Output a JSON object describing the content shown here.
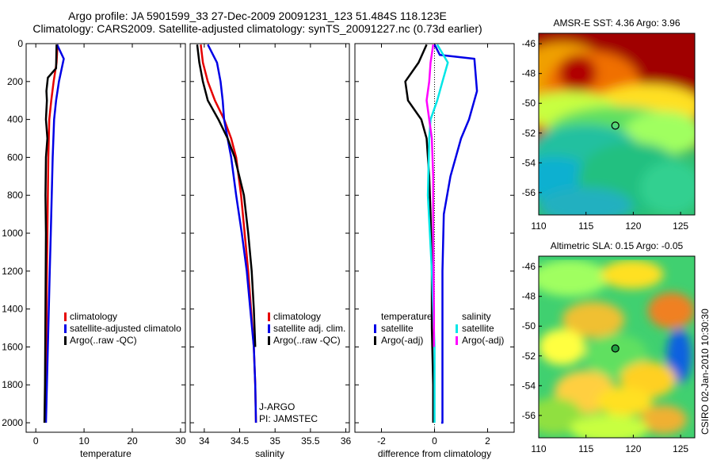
{
  "title_line1": "Argo profile: JA 5901599_33 27-Dec-2009 20091231_123 51.484S 118.123E",
  "title_line2": "Climatology: CARS2009. Satellite-adjusted climatology: synTS_20091227.nc (0.73d earlier)",
  "side_label": "CSIRO 02-Jan-2010 10:30:30",
  "colors": {
    "climatology": "#e60000",
    "satellite": "#0000e6",
    "argo": "#000000",
    "sal_satellite": "#00e6e6",
    "sal_argo": "#ff00ff"
  },
  "chart_data": [
    {
      "id": "temperature",
      "type": "line",
      "xlabel": "temperature",
      "ylabel": "",
      "xlim": [
        -2,
        31
      ],
      "ylim": [
        2050,
        0
      ],
      "xticks": [
        0,
        10,
        20,
        30
      ],
      "xtick_labels": [
        "0",
        "10",
        "20",
        "30"
      ],
      "yticks": [
        0,
        200,
        400,
        600,
        800,
        1000,
        1200,
        1400,
        1600,
        1800,
        2000
      ],
      "ytick_labels": [
        "0",
        "200",
        "400",
        "600",
        "800",
        "1000",
        "1200",
        "1400",
        "1600",
        "1800",
        "2000"
      ],
      "legend": [
        "climatology",
        "satellite-adjusted climatolo",
        "Argo(..raw -QC)"
      ],
      "series": [
        {
          "name": "climatology",
          "color": "#e60000",
          "x": [
            4.5,
            4.3,
            3.7,
            3.2,
            2.8,
            2.6,
            2.5,
            2.4,
            2.3,
            2.2,
            2.1,
            2.0
          ],
          "y": [
            5,
            100,
            200,
            300,
            400,
            600,
            800,
            1000,
            1200,
            1500,
            1800,
            2000
          ]
        },
        {
          "name": "satellite-adjusted climatology",
          "color": "#0000e6",
          "x": [
            4.4,
            5.8,
            4.8,
            4.2,
            3.8,
            3.5,
            3.3,
            3.1,
            2.9,
            2.6,
            2.3,
            2.1
          ],
          "y": [
            5,
            80,
            200,
            300,
            400,
            600,
            800,
            1000,
            1200,
            1500,
            1800,
            2000
          ]
        },
        {
          "name": "Argo(..raw -QC)",
          "color": "#000000",
          "x": [
            4.3,
            4.2,
            2.5,
            2.2,
            2.3,
            2.1,
            2.4,
            2.1,
            2.0,
            2.1,
            2.0,
            1.9,
            1.8
          ],
          "y": [
            5,
            130,
            180,
            250,
            300,
            400,
            500,
            600,
            800,
            1000,
            1400,
            1800,
            2000
          ]
        }
      ]
    },
    {
      "id": "salinity",
      "type": "line",
      "xlabel": "salinity",
      "ylabel": "",
      "xlim": [
        33.8,
        36.05
      ],
      "ylim": [
        2050,
        0
      ],
      "xticks": [
        34,
        34.5,
        35,
        35.5,
        36
      ],
      "xtick_labels": [
        "34",
        "34.5",
        "35",
        "35.5",
        "36"
      ],
      "yticks": [
        0,
        200,
        400,
        600,
        800,
        1000,
        1200,
        1400,
        1600,
        1800,
        2000
      ],
      "legend": [
        "climatology",
        "satellite adj. clim.",
        "Argo(..raw -QC)"
      ],
      "annotation": [
        "J-ARGO",
        "PI: JAMSTEC"
      ],
      "series": [
        {
          "name": "climatology",
          "color": "#e60000",
          "x": [
            33.95,
            33.98,
            34.05,
            34.15,
            34.28,
            34.38,
            34.45,
            34.52,
            34.57,
            34.62,
            34.66,
            34.7,
            34.72,
            34.73
          ],
          "y": [
            5,
            100,
            200,
            300,
            400,
            500,
            600,
            800,
            1000,
            1200,
            1400,
            1600,
            1800,
            2000
          ]
        },
        {
          "name": "satellite adj. clim.",
          "color": "#0000e6",
          "x": [
            34.05,
            34.18,
            34.23,
            34.26,
            34.28,
            34.33,
            34.38,
            34.45,
            34.53,
            34.6,
            34.65,
            34.7,
            34.72,
            34.73
          ],
          "y": [
            5,
            100,
            200,
            300,
            400,
            500,
            600,
            800,
            1000,
            1200,
            1400,
            1600,
            1800,
            2000
          ]
        },
        {
          "name": "Argo(..raw -QC)",
          "color": "#000000",
          "x": [
            33.9,
            33.93,
            33.98,
            34.05,
            34.2,
            34.33,
            34.43,
            34.56,
            34.62,
            34.67,
            34.7,
            34.72
          ],
          "y": [
            5,
            100,
            200,
            300,
            400,
            500,
            600,
            800,
            1000,
            1200,
            1400,
            1600
          ]
        }
      ]
    },
    {
      "id": "difference",
      "type": "line",
      "xlabel": "difference from climatology",
      "ylabel": "",
      "xlim": [
        -3,
        3
      ],
      "ylim": [
        2050,
        0
      ],
      "xticks": [
        -2,
        0,
        2
      ],
      "xtick_labels": [
        "-2",
        "0",
        "2"
      ],
      "yticks": [
        0,
        200,
        400,
        600,
        800,
        1000,
        1200,
        1400,
        1600,
        1800,
        2000
      ],
      "legend_left_title": "temperature",
      "legend_right_title": "salinity",
      "legend_left": [
        "satellite",
        "Argo(-adj)"
      ],
      "legend_right": [
        "satellite",
        "Argo(-adj)"
      ],
      "series": [
        {
          "name": "temperature satellite",
          "color": "#0000e6",
          "x": [
            0.0,
            0.2,
            1.5,
            1.6,
            1.3,
            1.0,
            0.6,
            0.35,
            0.3,
            0.3,
            0.3,
            0.3,
            0.25
          ],
          "y": [
            5,
            60,
            80,
            250,
            400,
            500,
            700,
            900,
            1200,
            1500,
            1800,
            2000,
            2000
          ]
        },
        {
          "name": "temperature Argo(-adj)",
          "color": "#000000",
          "x": [
            -0.3,
            -0.6,
            -1.1,
            -1.0,
            -0.5,
            -0.3,
            -0.2,
            -0.15,
            -0.1,
            -0.1,
            -0.05,
            -0.05,
            -0.05
          ],
          "y": [
            5,
            100,
            200,
            300,
            400,
            500,
            700,
            900,
            1200,
            1500,
            1800,
            2000,
            2000
          ]
        },
        {
          "name": "salinity satellite",
          "color": "#00e6e6",
          "x": [
            0.1,
            0.5,
            0.3,
            0.1,
            -0.15,
            -0.2,
            -0.25,
            -0.1,
            0.0,
            0.0
          ],
          "y": [
            5,
            100,
            200,
            300,
            400,
            500,
            800,
            1200,
            1600,
            2000
          ]
        },
        {
          "name": "salinity Argo(-adj)",
          "color": "#ff00ff",
          "x": [
            -0.05,
            -0.15,
            -0.2,
            -0.3,
            -0.2,
            -0.1,
            -0.05,
            -0.05,
            -0.02,
            -0.02
          ],
          "y": [
            5,
            100,
            200,
            300,
            400,
            500,
            700,
            1000,
            1400,
            1600
          ]
        }
      ]
    },
    {
      "id": "sst_map",
      "type": "heatmap",
      "title": "AMSR-E SST: 4.36 Argo: 3.96",
      "xlim": [
        110,
        126.5
      ],
      "ylim": [
        -57.5,
        -45.3
      ],
      "xticks": [
        110,
        115,
        120,
        125
      ],
      "xtick_labels": [
        "110",
        "115",
        "120",
        "125"
      ],
      "yticks": [
        -46,
        -48,
        -50,
        -52,
        -54,
        -56
      ],
      "ytick_labels": [
        "-46",
        "-48",
        "-50",
        "-52",
        "-54",
        "-56"
      ],
      "marker": {
        "lon": 118.1,
        "lat": -51.5
      }
    },
    {
      "id": "sla_map",
      "type": "heatmap",
      "title": "Altimetric SLA: 0.15 Argo: -0.05",
      "xlim": [
        110,
        126.5
      ],
      "ylim": [
        -57.5,
        -45.3
      ],
      "xticks": [
        110,
        115,
        120,
        125
      ],
      "xtick_labels": [
        "110",
        "115",
        "120",
        "125"
      ],
      "yticks": [
        -46,
        -48,
        -50,
        -52,
        -54,
        -56
      ],
      "ytick_labels": [
        "-46",
        "-48",
        "-50",
        "-52",
        "-54",
        "-56"
      ],
      "marker": {
        "lon": 118.1,
        "lat": -51.5
      }
    }
  ]
}
